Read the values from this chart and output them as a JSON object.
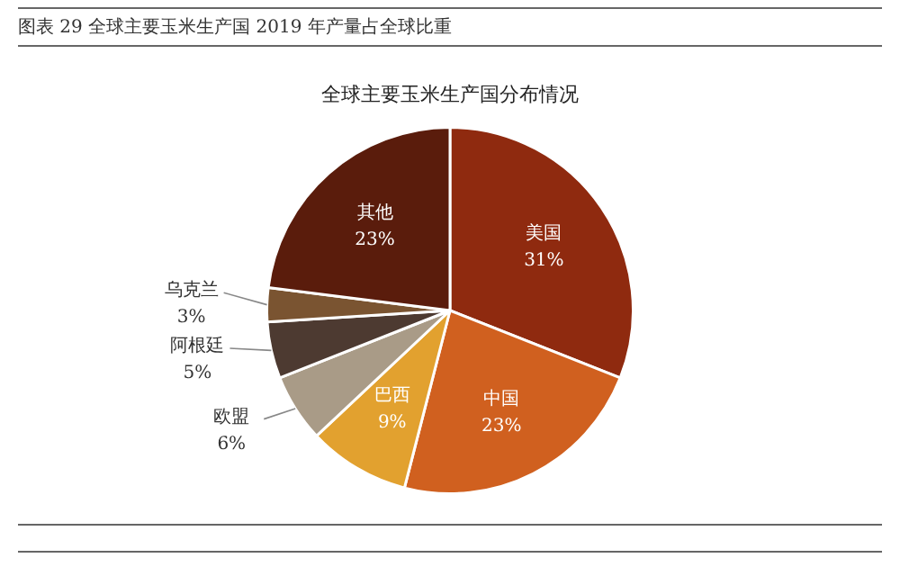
{
  "chart_data": {
    "type": "pie",
    "title": "图表 29 全球主要玉米生产国 2019 年产量占全球比重",
    "subtitle": "全球主要玉米生产国分布情况",
    "categories": [
      "美国",
      "中国",
      "巴西",
      "欧盟",
      "阿根廷",
      "乌克兰",
      "其他"
    ],
    "values": [
      31,
      23,
      9,
      6,
      5,
      3,
      23
    ],
    "value_labels": [
      "31%",
      "23%",
      "9%",
      "6%",
      "5%",
      "3%",
      "23%"
    ],
    "colors": [
      "#8f2a0f",
      "#d0601f",
      "#e2a12f",
      "#a99b87",
      "#4d3a31",
      "#7a5431",
      "#5a1c0c"
    ],
    "legend": false
  }
}
